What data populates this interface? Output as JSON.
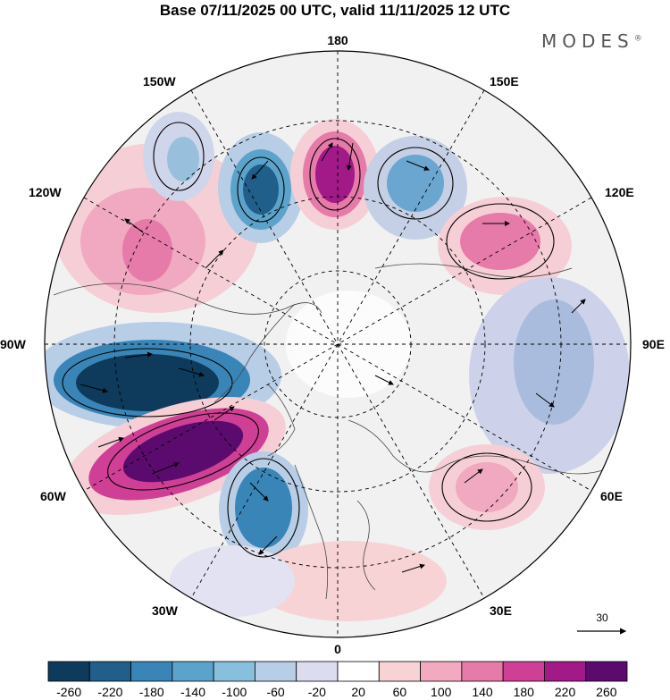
{
  "title": "Base 07/11/2025 00 UTC, valid 11/11/2025 12 UTC",
  "brand": "MODES",
  "brand_mark": "®",
  "map": {
    "projection": "north-polar-stereographic",
    "longitude_labels": {
      "top": "180",
      "bottom": "0",
      "left": "90W",
      "right": "90E",
      "upper_left": "150W",
      "upper_right": "150E",
      "mid_left_upper": "120W",
      "mid_right_upper": "120E",
      "lower_left": "60W",
      "lower_right": "60E",
      "bottom_left": "30W",
      "bottom_right": "30E"
    },
    "reference_vector_label": "30"
  },
  "colorbar": {
    "ticks": [
      "-260",
      "-220",
      "-180",
      "-140",
      "-100",
      "-60",
      "-20",
      "20",
      "60",
      "100",
      "140",
      "180",
      "220",
      "260"
    ],
    "colors": [
      "#0e3a5c",
      "#1f5f8a",
      "#3a85b8",
      "#5ca3cc",
      "#88bfdc",
      "#b8cde6",
      "#dcdcf0",
      "#ffffff",
      "#f8d3d6",
      "#f2aac0",
      "#e67aa8",
      "#cf3f95",
      "#a11a88",
      "#5b0b6e"
    ]
  }
}
